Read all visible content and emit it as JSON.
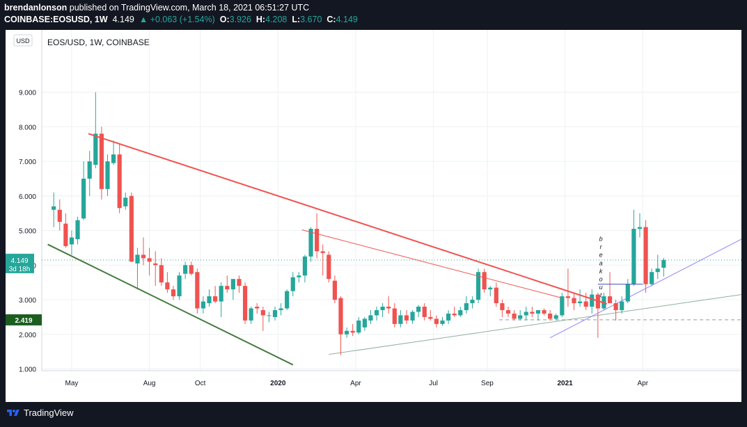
{
  "header": {
    "author": "brendanlonson",
    "published": " published on TradingView.com, March 18, 2021 06:51:27 UTC",
    "symbol": "COINBASE:EOSUSD, 1W",
    "last": "4.149",
    "change": "▲ +0.063 (+1.54%)",
    "o_label": "O:",
    "o_value": "3.926",
    "h_label": "H:",
    "h_value": "4.208",
    "l_label": "L:",
    "l_value": "3.670",
    "c_label": "C:",
    "c_value": "4.149"
  },
  "footer": {
    "brand": "TradingView"
  },
  "colors": {
    "up": "#26a69a",
    "down": "#ef5350",
    "background": "#131722",
    "trend_red": "#ef5350",
    "trend_green": "#437a3c"
  },
  "chart_data": {
    "type": "candlestick",
    "title": "EOS/USD, 1W, COINBASE",
    "currency_badge": "USD",
    "ylim": [
      0.95,
      10.8
    ],
    "yticks": [
      1.0,
      2.0,
      3.0,
      4.0,
      5.0,
      6.0,
      7.0,
      8.0,
      9.0
    ],
    "ytick_labels": [
      "1.000",
      "2.000",
      "3.000",
      "4.000",
      "5.000",
      "6.000",
      "7.000",
      "8.000",
      "9.000"
    ],
    "xlim_weeks": [
      0,
      117
    ],
    "xticks": [
      {
        "week": 5.0,
        "label": "May",
        "bold": false
      },
      {
        "week": 18.0,
        "label": "Aug",
        "bold": false
      },
      {
        "week": 26.5,
        "label": "Oct",
        "bold": false
      },
      {
        "week": 39.5,
        "label": "2020",
        "bold": true
      },
      {
        "week": 52.5,
        "label": "Apr",
        "bold": false
      },
      {
        "week": 65.5,
        "label": "Jul",
        "bold": false
      },
      {
        "week": 74.5,
        "label": "Sep",
        "bold": false
      },
      {
        "week": 87.5,
        "label": "2021",
        "bold": true
      },
      {
        "week": 100.5,
        "label": "Apr",
        "bold": false
      }
    ],
    "candles": [
      {
        "o": 5.6,
        "h": 6.1,
        "l": 5.1,
        "c": 5.7
      },
      {
        "o": 5.6,
        "h": 5.9,
        "l": 5.0,
        "c": 5.25
      },
      {
        "o": 5.2,
        "h": 5.5,
        "l": 4.5,
        "c": 4.55
      },
      {
        "o": 4.6,
        "h": 5.0,
        "l": 4.3,
        "c": 4.8
      },
      {
        "o": 4.75,
        "h": 5.4,
        "l": 4.6,
        "c": 5.3
      },
      {
        "o": 5.35,
        "h": 7.0,
        "l": 5.3,
        "c": 6.5
      },
      {
        "o": 6.5,
        "h": 7.3,
        "l": 6.0,
        "c": 7.0
      },
      {
        "o": 6.9,
        "h": 9.0,
        "l": 6.8,
        "c": 7.8
      },
      {
        "o": 7.8,
        "h": 8.0,
        "l": 5.9,
        "c": 6.2
      },
      {
        "o": 6.2,
        "h": 7.2,
        "l": 6.0,
        "c": 7.0
      },
      {
        "o": 6.95,
        "h": 7.6,
        "l": 6.9,
        "c": 7.2
      },
      {
        "o": 7.2,
        "h": 7.5,
        "l": 5.5,
        "c": 5.65
      },
      {
        "o": 5.7,
        "h": 6.1,
        "l": 5.6,
        "c": 5.95
      },
      {
        "o": 6.0,
        "h": 6.1,
        "l": 4.1,
        "c": 4.1
      },
      {
        "o": 4.05,
        "h": 4.5,
        "l": 3.3,
        "c": 4.3
      },
      {
        "o": 4.3,
        "h": 4.8,
        "l": 4.0,
        "c": 4.2
      },
      {
        "o": 4.2,
        "h": 4.5,
        "l": 3.7,
        "c": 4.1
      },
      {
        "o": 4.05,
        "h": 4.4,
        "l": 3.4,
        "c": 4.0
      },
      {
        "o": 4.0,
        "h": 4.2,
        "l": 3.4,
        "c": 3.5
      },
      {
        "o": 3.5,
        "h": 3.8,
        "l": 3.2,
        "c": 3.3
      },
      {
        "o": 3.3,
        "h": 3.4,
        "l": 3.0,
        "c": 3.1
      },
      {
        "o": 3.1,
        "h": 3.8,
        "l": 3.0,
        "c": 3.7
      },
      {
        "o": 3.75,
        "h": 4.1,
        "l": 3.6,
        "c": 4.0
      },
      {
        "o": 4.0,
        "h": 4.1,
        "l": 3.7,
        "c": 3.75
      },
      {
        "o": 3.8,
        "h": 3.9,
        "l": 2.6,
        "c": 2.75
      },
      {
        "o": 2.75,
        "h": 3.1,
        "l": 2.6,
        "c": 2.95
      },
      {
        "o": 2.9,
        "h": 3.3,
        "l": 2.8,
        "c": 3.1
      },
      {
        "o": 3.1,
        "h": 3.4,
        "l": 2.9,
        "c": 2.95
      },
      {
        "o": 2.95,
        "h": 3.5,
        "l": 2.5,
        "c": 3.4
      },
      {
        "o": 3.4,
        "h": 3.7,
        "l": 3.2,
        "c": 3.3
      },
      {
        "o": 3.3,
        "h": 3.6,
        "l": 3.0,
        "c": 3.6
      },
      {
        "o": 3.6,
        "h": 3.7,
        "l": 3.2,
        "c": 3.4
      },
      {
        "o": 3.4,
        "h": 3.5,
        "l": 2.3,
        "c": 2.4
      },
      {
        "o": 2.4,
        "h": 2.8,
        "l": 2.3,
        "c": 2.75
      },
      {
        "o": 2.8,
        "h": 2.9,
        "l": 2.6,
        "c": 2.75
      },
      {
        "o": 2.7,
        "h": 2.8,
        "l": 2.1,
        "c": 2.55
      },
      {
        "o": 2.55,
        "h": 2.65,
        "l": 2.35,
        "c": 2.55
      },
      {
        "o": 2.5,
        "h": 2.8,
        "l": 2.4,
        "c": 2.7
      },
      {
        "o": 2.7,
        "h": 2.9,
        "l": 2.55,
        "c": 2.75
      },
      {
        "o": 2.75,
        "h": 3.3,
        "l": 2.7,
        "c": 3.25
      },
      {
        "o": 3.25,
        "h": 3.8,
        "l": 3.1,
        "c": 3.65
      },
      {
        "o": 3.65,
        "h": 3.8,
        "l": 3.5,
        "c": 3.7
      },
      {
        "o": 3.7,
        "h": 4.3,
        "l": 3.5,
        "c": 4.25
      },
      {
        "o": 4.25,
        "h": 5.1,
        "l": 4.1,
        "c": 5.05
      },
      {
        "o": 5.05,
        "h": 5.5,
        "l": 4.2,
        "c": 4.4
      },
      {
        "o": 4.4,
        "h": 4.6,
        "l": 3.7,
        "c": 4.35
      },
      {
        "o": 4.3,
        "h": 4.4,
        "l": 3.5,
        "c": 3.6
      },
      {
        "o": 3.55,
        "h": 3.7,
        "l": 2.9,
        "c": 3.0
      },
      {
        "o": 3.05,
        "h": 3.1,
        "l": 1.4,
        "c": 2.0
      },
      {
        "o": 2.0,
        "h": 2.2,
        "l": 1.9,
        "c": 2.1
      },
      {
        "o": 2.1,
        "h": 2.3,
        "l": 1.95,
        "c": 2.05
      },
      {
        "o": 2.05,
        "h": 2.5,
        "l": 2.0,
        "c": 2.4
      },
      {
        "o": 2.2,
        "h": 2.5,
        "l": 2.1,
        "c": 2.45
      },
      {
        "o": 2.4,
        "h": 2.7,
        "l": 2.3,
        "c": 2.55
      },
      {
        "o": 2.55,
        "h": 2.8,
        "l": 2.4,
        "c": 2.7
      },
      {
        "o": 2.7,
        "h": 2.9,
        "l": 2.5,
        "c": 2.8
      },
      {
        "o": 2.8,
        "h": 3.1,
        "l": 2.6,
        "c": 2.75
      },
      {
        "o": 2.75,
        "h": 2.9,
        "l": 2.2,
        "c": 2.3
      },
      {
        "o": 2.3,
        "h": 2.7,
        "l": 2.2,
        "c": 2.55
      },
      {
        "o": 2.55,
        "h": 2.7,
        "l": 2.3,
        "c": 2.4
      },
      {
        "o": 2.4,
        "h": 2.7,
        "l": 2.3,
        "c": 2.65
      },
      {
        "o": 2.65,
        "h": 2.85,
        "l": 2.5,
        "c": 2.8
      },
      {
        "o": 2.8,
        "h": 2.9,
        "l": 2.4,
        "c": 2.5
      },
      {
        "o": 2.5,
        "h": 2.7,
        "l": 2.4,
        "c": 2.45
      },
      {
        "o": 2.45,
        "h": 2.55,
        "l": 2.2,
        "c": 2.3
      },
      {
        "o": 2.3,
        "h": 2.5,
        "l": 2.25,
        "c": 2.4
      },
      {
        "o": 2.4,
        "h": 2.7,
        "l": 2.3,
        "c": 2.6
      },
      {
        "o": 2.6,
        "h": 2.8,
        "l": 2.5,
        "c": 2.55
      },
      {
        "o": 2.55,
        "h": 2.8,
        "l": 2.5,
        "c": 2.7
      },
      {
        "o": 2.7,
        "h": 3.1,
        "l": 2.6,
        "c": 2.9
      },
      {
        "o": 2.9,
        "h": 3.1,
        "l": 2.75,
        "c": 3.0
      },
      {
        "o": 3.0,
        "h": 3.9,
        "l": 2.9,
        "c": 3.8
      },
      {
        "o": 3.8,
        "h": 3.9,
        "l": 3.2,
        "c": 3.3
      },
      {
        "o": 3.3,
        "h": 3.4,
        "l": 3.1,
        "c": 3.35
      },
      {
        "o": 3.35,
        "h": 3.5,
        "l": 2.8,
        "c": 2.9
      },
      {
        "o": 2.9,
        "h": 3.0,
        "l": 2.5,
        "c": 2.7
      },
      {
        "o": 2.7,
        "h": 2.8,
        "l": 2.5,
        "c": 2.6
      },
      {
        "o": 2.6,
        "h": 2.7,
        "l": 2.4,
        "c": 2.45
      },
      {
        "o": 2.45,
        "h": 2.7,
        "l": 2.4,
        "c": 2.55
      },
      {
        "o": 2.55,
        "h": 2.8,
        "l": 2.4,
        "c": 2.65
      },
      {
        "o": 2.65,
        "h": 2.8,
        "l": 2.5,
        "c": 2.6
      },
      {
        "o": 2.6,
        "h": 2.7,
        "l": 2.4,
        "c": 2.7
      },
      {
        "o": 2.7,
        "h": 2.75,
        "l": 2.55,
        "c": 2.6
      },
      {
        "o": 2.6,
        "h": 2.7,
        "l": 2.4,
        "c": 2.45
      },
      {
        "o": 2.45,
        "h": 2.6,
        "l": 2.4,
        "c": 2.55
      },
      {
        "o": 2.55,
        "h": 3.2,
        "l": 2.5,
        "c": 3.1
      },
      {
        "o": 3.1,
        "h": 3.9,
        "l": 2.8,
        "c": 3.05
      },
      {
        "o": 3.05,
        "h": 3.2,
        "l": 2.7,
        "c": 2.9
      },
      {
        "o": 2.9,
        "h": 3.3,
        "l": 2.8,
        "c": 2.95
      },
      {
        "o": 2.95,
        "h": 3.2,
        "l": 2.7,
        "c": 2.8
      },
      {
        "o": 2.8,
        "h": 3.3,
        "l": 2.6,
        "c": 3.15
      },
      {
        "o": 3.15,
        "h": 3.2,
        "l": 1.9,
        "c": 2.75
      },
      {
        "o": 2.75,
        "h": 3.2,
        "l": 2.7,
        "c": 3.1
      },
      {
        "o": 3.1,
        "h": 3.8,
        "l": 2.9,
        "c": 2.9
      },
      {
        "o": 2.9,
        "h": 3.0,
        "l": 2.4,
        "c": 2.7
      },
      {
        "o": 2.7,
        "h": 3.1,
        "l": 2.6,
        "c": 2.95
      },
      {
        "o": 2.95,
        "h": 3.6,
        "l": 2.9,
        "c": 3.45
      },
      {
        "o": 3.45,
        "h": 5.6,
        "l": 3.4,
        "c": 5.05
      },
      {
        "o": 5.05,
        "h": 5.5,
        "l": 4.8,
        "c": 5.1
      },
      {
        "o": 5.1,
        "h": 5.3,
        "l": 3.2,
        "c": 3.45
      },
      {
        "o": 3.45,
        "h": 3.9,
        "l": 3.4,
        "c": 3.8
      },
      {
        "o": 3.8,
        "h": 4.3,
        "l": 3.6,
        "c": 3.9
      },
      {
        "o": 3.926,
        "h": 4.208,
        "l": 3.67,
        "c": 4.149
      }
    ],
    "first_candle_week": 2.0,
    "current_price": {
      "value": 4.149,
      "label": "4.149",
      "countdown": "3d 18h"
    },
    "horizontal_level": {
      "value": 2.419,
      "label": "2.419",
      "from_week": 76.5
    },
    "trendlines": [
      {
        "name": "major-downtrend",
        "from": [
          7.8,
          7.8
        ],
        "to": [
          94.5,
          2.88
        ],
        "color": "#ef5350",
        "width": 2
      },
      {
        "name": "secondary-downtrend",
        "from": [
          43.5,
          5.02
        ],
        "to": [
          87.0,
          3.05
        ],
        "color": "#ef5350",
        "width": 1
      },
      {
        "name": "green-support-line",
        "from": [
          1.0,
          4.6
        ],
        "to": [
          42.0,
          1.12
        ],
        "color": "#437a3c",
        "width": 2
      },
      {
        "name": "long-term-support-line",
        "from": [
          48.0,
          1.42
        ],
        "to": [
          117.0,
          3.15
        ],
        "color": "#8fb09a",
        "width": 1
      },
      {
        "name": "breakout-ascending-line",
        "from": [
          85.0,
          1.9
        ],
        "to": [
          117.0,
          4.75
        ],
        "color": "#9381ff",
        "width": 1
      },
      {
        "name": "breakout-base-line",
        "from": [
          93.0,
          3.45
        ],
        "to": [
          100.5,
          3.45
        ],
        "color": "#3f51b5",
        "width": 1
      }
    ],
    "annotation": {
      "text": "breakout",
      "week": 93.5,
      "price": 4.7
    }
  }
}
